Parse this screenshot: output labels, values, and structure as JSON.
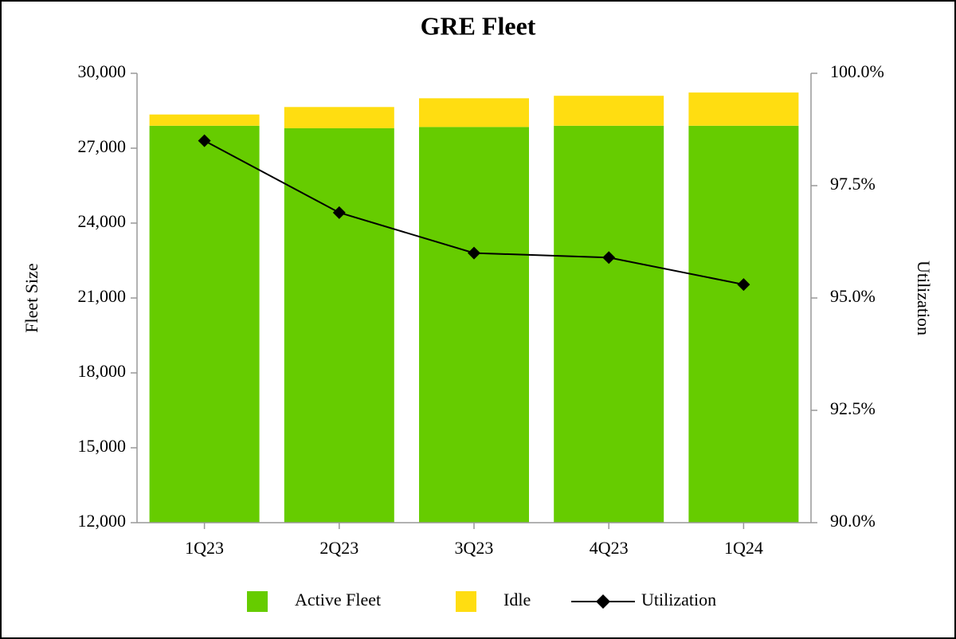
{
  "chart_data": {
    "type": "bar",
    "stacked": true,
    "title": "GRE Fleet",
    "y_label": "Fleet Size",
    "y2_label": "Utilization",
    "categories": [
      "1Q23",
      "2Q23",
      "3Q23",
      "4Q23",
      "1Q24"
    ],
    "series": [
      {
        "name": "Active Fleet",
        "type": "bar",
        "color": "#66cc00",
        "values": [
          27900,
          27800,
          27850,
          27900,
          27900
        ]
      },
      {
        "name": "Idle",
        "type": "bar",
        "color": "#ffdd11",
        "values": [
          450,
          850,
          1150,
          1200,
          1330
        ]
      },
      {
        "name": "Utilization",
        "type": "line",
        "axis": "y2",
        "color": "#000000",
        "marker": "diamond",
        "values": [
          98.5,
          96.9,
          96.0,
          95.9,
          95.3
        ]
      }
    ],
    "ylim": [
      12000,
      30000
    ],
    "yticks": [
      {
        "value": 12000,
        "label": "12,000"
      },
      {
        "value": 15000,
        "label": "15,000"
      },
      {
        "value": 18000,
        "label": "18,000"
      },
      {
        "value": 21000,
        "label": "21,000"
      },
      {
        "value": 24000,
        "label": "24,000"
      },
      {
        "value": 27000,
        "label": "27,000"
      },
      {
        "value": 30000,
        "label": "30,000"
      }
    ],
    "y2lim": [
      90,
      100
    ],
    "y2ticks": [
      {
        "value": 90,
        "label": "90.0%"
      },
      {
        "value": 92.5,
        "label": "92.5%"
      },
      {
        "value": 95,
        "label": "95.0%"
      },
      {
        "value": 97.5,
        "label": "97.5%"
      },
      {
        "value": 100,
        "label": "100.0%"
      }
    ],
    "grid": false,
    "legend": "bottom"
  }
}
